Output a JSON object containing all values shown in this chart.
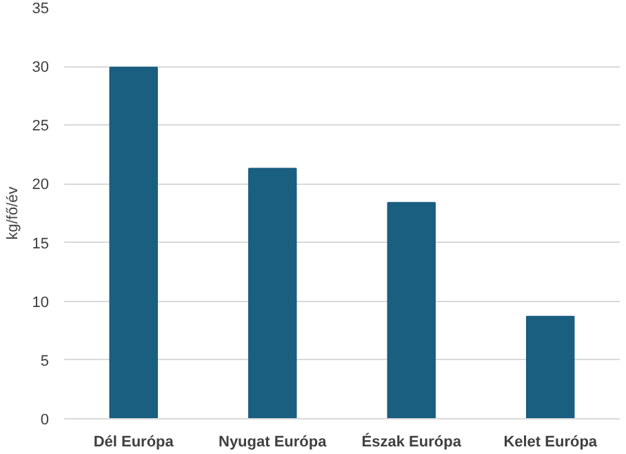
{
  "chart_data": {
    "type": "bar",
    "ylabel": "kg/fő/év",
    "categories": [
      "Dél Európa",
      "Nyugat Európa",
      "Észak Európa",
      "Kelet Európa"
    ],
    "values": [
      29.9,
      21.3,
      18.4,
      8.7
    ],
    "color": "#1a5e80",
    "ylim": [
      0,
      35
    ],
    "yticks": [
      0,
      5,
      10,
      15,
      20,
      25,
      30,
      35
    ],
    "grid": "y"
  }
}
